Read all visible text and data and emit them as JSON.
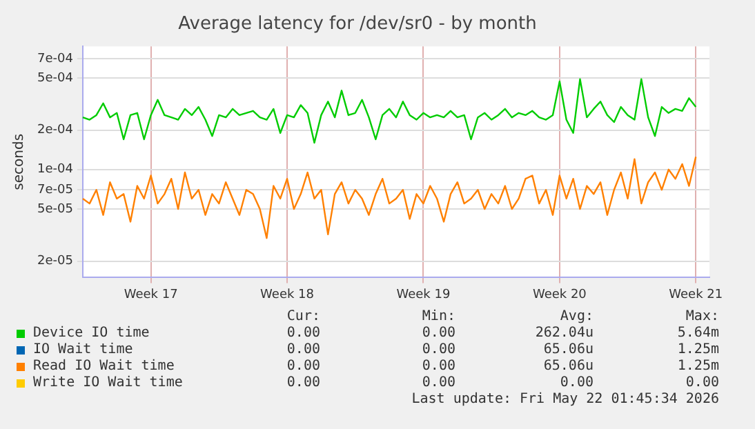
{
  "chart_data": {
    "type": "line",
    "title": "Average latency for /dev/sr0 - by month",
    "ylabel": "seconds",
    "log": "y",
    "grid": true,
    "legend": "bottom",
    "marker": "none",
    "line_style": "solid",
    "categories": [
      null,
      null,
      null,
      null,
      null,
      null,
      null,
      null,
      null,
      null,
      "Week 17",
      null,
      null,
      null,
      null,
      null,
      null,
      null,
      null,
      null,
      null,
      null,
      null,
      null,
      null,
      null,
      null,
      null,
      null,
      null,
      "Week 18",
      null,
      null,
      null,
      null,
      null,
      null,
      null,
      null,
      null,
      null,
      null,
      null,
      null,
      null,
      null,
      null,
      null,
      null,
      null,
      "Week 19",
      null,
      null,
      null,
      null,
      null,
      null,
      null,
      null,
      null,
      null,
      null,
      null,
      null,
      null,
      null,
      null,
      null,
      null,
      null,
      "Week 20",
      null,
      null,
      null,
      null,
      null,
      null,
      null,
      null,
      null,
      null,
      null,
      null,
      null,
      null,
      null,
      null,
      null,
      null,
      null,
      "Week 21",
      null,
      null
    ],
    "ylim": [
      1.5e-05,
      0.00087
    ],
    "yticks": [
      {
        "value": 2e-05,
        "label": "2e-05"
      },
      {
        "value": 5e-05,
        "label": "5e-05"
      },
      {
        "value": 7e-05,
        "label": "7e-05"
      },
      {
        "value": 0.0001,
        "label": "1e-04"
      },
      {
        "value": 0.0002,
        "label": "2e-04"
      },
      {
        "value": 0.0005,
        "label": "5e-04"
      },
      {
        "value": 0.0007,
        "label": "7e-04"
      }
    ],
    "series": [
      {
        "name": "Device IO time",
        "color": "#00cc00",
        "values": [
          0.00025,
          0.00024,
          0.00026,
          0.00032,
          0.00025,
          0.00027,
          0.00017,
          0.00026,
          0.00027,
          0.00017,
          0.00026,
          0.00034,
          0.00026,
          0.00025,
          0.00024,
          0.00029,
          0.00026,
          0.0003,
          0.00024,
          0.00018,
          0.00026,
          0.00025,
          0.00029,
          0.00026,
          0.00027,
          0.00028,
          0.00025,
          0.00024,
          0.00029,
          0.00019,
          0.00026,
          0.00025,
          0.00031,
          0.00027,
          0.00016,
          0.00026,
          0.00033,
          0.00025,
          0.0004,
          0.00026,
          0.00027,
          0.00034,
          0.00025,
          0.00017,
          0.00026,
          0.00029,
          0.00025,
          0.00033,
          0.00026,
          0.00024,
          0.00027,
          0.00025,
          0.00026,
          0.00025,
          0.00028,
          0.00025,
          0.00026,
          0.00017,
          0.00025,
          0.00027,
          0.00024,
          0.00026,
          0.00029,
          0.00025,
          0.00027,
          0.00026,
          0.00028,
          0.00025,
          0.00024,
          0.00026,
          0.00047,
          0.00024,
          0.00019,
          0.00049,
          0.00025,
          0.00029,
          0.00033,
          0.00026,
          0.00023,
          0.0003,
          0.00026,
          0.00024,
          0.00049,
          0.00025,
          0.00018,
          0.0003,
          0.00027,
          0.00029,
          0.00028,
          0.00035,
          0.0003,
          null,
          null
        ]
      },
      {
        "name": "IO Wait time",
        "color": "#0066b3",
        "values": [
          null,
          null,
          null,
          null,
          null,
          null,
          null,
          null,
          null,
          null,
          null,
          null,
          null,
          null,
          null,
          null,
          null,
          null,
          null,
          null,
          null,
          null,
          null,
          null,
          null,
          null,
          null,
          null,
          null,
          null,
          null,
          null,
          null,
          null,
          null,
          null,
          null,
          null,
          null,
          null,
          null,
          null,
          null,
          null,
          null,
          null,
          null,
          null,
          null,
          null,
          null,
          null,
          null,
          null,
          null,
          null,
          null,
          null,
          null,
          null,
          null,
          null,
          null,
          null,
          null,
          null,
          null,
          null,
          null,
          null,
          null,
          null,
          null,
          null,
          null,
          null,
          null,
          null,
          null,
          null,
          null,
          null,
          null,
          null,
          null,
          null,
          null,
          null,
          null,
          null,
          null,
          null,
          null
        ]
      },
      {
        "name": "Read IO Wait time",
        "color": "#ff8000",
        "values": [
          6e-05,
          5.5e-05,
          7e-05,
          4.5e-05,
          8e-05,
          6e-05,
          6.5e-05,
          4e-05,
          7.5e-05,
          6e-05,
          9e-05,
          5.5e-05,
          6.5e-05,
          8.5e-05,
          5e-05,
          9.5e-05,
          6e-05,
          7e-05,
          4.5e-05,
          6.5e-05,
          5.5e-05,
          8e-05,
          6e-05,
          4.5e-05,
          7e-05,
          6.5e-05,
          5e-05,
          3e-05,
          7.5e-05,
          6e-05,
          8.5e-05,
          5e-05,
          6.5e-05,
          9.5e-05,
          6e-05,
          7e-05,
          3.2e-05,
          6.5e-05,
          8e-05,
          5.5e-05,
          7e-05,
          6e-05,
          4.5e-05,
          6.5e-05,
          8.5e-05,
          5.5e-05,
          6e-05,
          7e-05,
          4.2e-05,
          6.5e-05,
          5.5e-05,
          7.5e-05,
          6e-05,
          4e-05,
          6.5e-05,
          8e-05,
          5.5e-05,
          6e-05,
          7e-05,
          5e-05,
          6.5e-05,
          5.5e-05,
          7.5e-05,
          5e-05,
          6e-05,
          8.5e-05,
          9e-05,
          5.5e-05,
          7e-05,
          4.5e-05,
          9e-05,
          6e-05,
          8.5e-05,
          5e-05,
          7.5e-05,
          6.5e-05,
          8e-05,
          4.5e-05,
          7e-05,
          9.5e-05,
          6e-05,
          0.00012,
          5.5e-05,
          8e-05,
          9.5e-05,
          7e-05,
          0.0001,
          8.5e-05,
          0.00011,
          7.5e-05,
          0.000125,
          null,
          null
        ]
      },
      {
        "name": "Write IO Wait time",
        "color": "#ffcc00",
        "values": [
          null,
          null,
          null,
          null,
          null,
          null,
          null,
          null,
          null,
          null,
          null,
          null,
          null,
          null,
          null,
          null,
          null,
          null,
          null,
          null,
          null,
          null,
          null,
          null,
          null,
          null,
          null,
          null,
          null,
          null,
          null,
          null,
          null,
          null,
          null,
          null,
          null,
          null,
          null,
          null,
          null,
          null,
          null,
          null,
          null,
          null,
          null,
          null,
          null,
          null,
          null,
          null,
          null,
          null,
          null,
          null,
          null,
          null,
          null,
          null,
          null,
          null,
          null,
          null,
          null,
          null,
          null,
          null,
          null,
          null,
          null,
          null,
          null,
          null,
          null,
          null,
          null,
          null,
          null,
          null,
          null,
          null,
          null,
          null,
          null,
          null,
          null,
          null,
          null,
          null,
          null,
          null,
          null
        ]
      }
    ],
    "annotations": [
      "Cur:",
      "Min:",
      "Avg:",
      "Max:",
      "0.00",
      "0.00",
      "262.04u",
      "5.64m",
      "0.00",
      "0.00",
      "65.06u",
      "1.25m",
      "0.00",
      "0.00",
      "65.06u",
      "1.25m",
      "0.00",
      "0.00",
      "0.00",
      "0.00",
      "Last update: Fri May 22 01:45:34 2026"
    ]
  }
}
